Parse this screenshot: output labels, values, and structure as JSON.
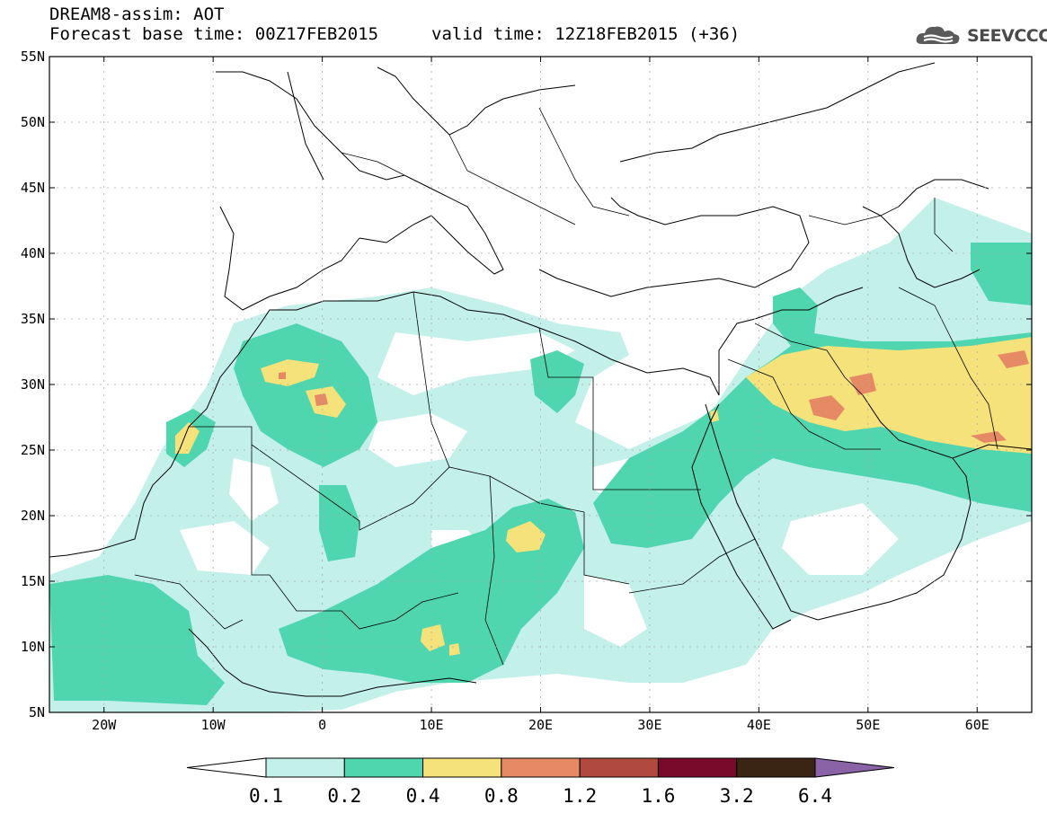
{
  "header": {
    "title": "DREAM8-assim: AOT",
    "base_time": "Forecast base time: 00Z17FEB2015",
    "valid_time": "valid time: 12Z18FEB2015 (+36)",
    "logo_text": "SEEVCCC",
    "logo_icon": "cloud-icon"
  },
  "map": {
    "lon_range": [
      -25,
      65
    ],
    "lat_range": [
      5,
      55
    ],
    "lat_ticks": [
      {
        "value": 55,
        "label": "55N"
      },
      {
        "value": 50,
        "label": "50N"
      },
      {
        "value": 45,
        "label": "45N"
      },
      {
        "value": 40,
        "label": "40N"
      },
      {
        "value": 35,
        "label": "35N"
      },
      {
        "value": 30,
        "label": "30N"
      },
      {
        "value": 25,
        "label": "25N"
      },
      {
        "value": 20,
        "label": "20N"
      },
      {
        "value": 15,
        "label": "15N"
      },
      {
        "value": 10,
        "label": "10N"
      },
      {
        "value": 5,
        "label": "5N"
      }
    ],
    "lon_ticks": [
      {
        "value": -20,
        "label": "20W"
      },
      {
        "value": -10,
        "label": "10W"
      },
      {
        "value": 0,
        "label": "0"
      },
      {
        "value": 10,
        "label": "10E"
      },
      {
        "value": 20,
        "label": "20E"
      },
      {
        "value": 30,
        "label": "30E"
      },
      {
        "value": 40,
        "label": "40E"
      },
      {
        "value": 50,
        "label": "50E"
      },
      {
        "value": 60,
        "label": "60E"
      }
    ],
    "grid": true
  },
  "colorbar": {
    "levels": [
      "0.1",
      "0.2",
      "0.4",
      "0.8",
      "1.2",
      "1.6",
      "3.2",
      "6.4"
    ],
    "colors": [
      "#ffffff",
      "#c4f0ea",
      "#4fd6ae",
      "#f6e27a",
      "#e68a66",
      "#b04a3e",
      "#7a0a2c",
      "#3a2414",
      "#8a62a6"
    ]
  }
}
